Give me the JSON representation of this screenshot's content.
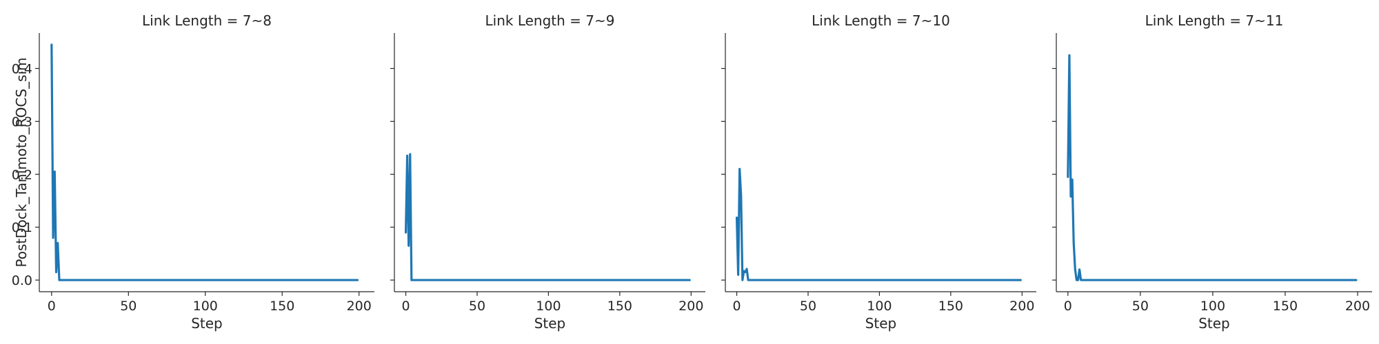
{
  "figure": {
    "ylabel": "PostDock_Tanimoto_ROCS_sim",
    "line_color": "#1f77b4"
  },
  "chart_data": [
    {
      "type": "line",
      "title": "Link Length = 7~8",
      "xlabel": "Step",
      "ylabel": "PostDock_Tanimoto_ROCS_sim",
      "xlim": [
        -8,
        210
      ],
      "ylim": [
        -0.022,
        0.467
      ],
      "xticks": [
        0,
        50,
        100,
        150,
        200
      ],
      "yticks": [
        0.0,
        0.1,
        0.2,
        0.3,
        0.4
      ],
      "show_yticklabels": true,
      "grid": false,
      "x": [
        0,
        1,
        2,
        3,
        4,
        5,
        6,
        7,
        10,
        50,
        100,
        150,
        199
      ],
      "y": [
        0.445,
        0.08,
        0.205,
        0.015,
        0.07,
        0.0,
        0.0,
        0.0,
        0.0,
        0.0,
        0.0,
        0.0,
        0.0
      ]
    },
    {
      "type": "line",
      "title": "Link Length = 7~9",
      "xlabel": "Step",
      "ylabel": "",
      "xlim": [
        -8,
        210
      ],
      "ylim": [
        -0.022,
        0.467
      ],
      "xticks": [
        0,
        50,
        100,
        150,
        200
      ],
      "yticks": [
        0.0,
        0.1,
        0.2,
        0.3,
        0.4
      ],
      "show_yticklabels": false,
      "grid": false,
      "x": [
        0,
        1,
        2,
        3,
        4,
        5,
        10,
        50,
        100,
        150,
        199
      ],
      "y": [
        0.09,
        0.235,
        0.065,
        0.238,
        0.0,
        0.0,
        0.0,
        0.0,
        0.0,
        0.0,
        0.0
      ]
    },
    {
      "type": "line",
      "title": "Link Length = 7~10",
      "xlabel": "Step",
      "ylabel": "",
      "xlim": [
        -8,
        210
      ],
      "ylim": [
        -0.022,
        0.467
      ],
      "xticks": [
        0,
        50,
        100,
        150,
        200
      ],
      "yticks": [
        0.0,
        0.1,
        0.2,
        0.3,
        0.4
      ],
      "show_yticklabels": false,
      "grid": false,
      "x": [
        0,
        1,
        2,
        3,
        4,
        5,
        6,
        7,
        8,
        10,
        50,
        100,
        150,
        199
      ],
      "y": [
        0.118,
        0.01,
        0.21,
        0.16,
        0.0,
        0.017,
        0.015,
        0.021,
        0.0,
        0.0,
        0.0,
        0.0,
        0.0,
        0.0
      ]
    },
    {
      "type": "line",
      "title": "Link Length = 7~11",
      "xlabel": "Step",
      "ylabel": "",
      "xlim": [
        -8,
        210
      ],
      "ylim": [
        -0.022,
        0.467
      ],
      "xticks": [
        0,
        50,
        100,
        150,
        200
      ],
      "yticks": [
        0.0,
        0.1,
        0.2,
        0.3,
        0.4
      ],
      "show_yticklabels": false,
      "grid": false,
      "x": [
        0,
        1,
        2,
        3,
        4,
        5,
        6,
        7,
        8,
        9,
        10,
        50,
        100,
        150,
        199
      ],
      "y": [
        0.195,
        0.425,
        0.158,
        0.19,
        0.07,
        0.02,
        0.0,
        0.0,
        0.02,
        0.0,
        0.0,
        0.0,
        0.0,
        0.0,
        0.0
      ]
    }
  ]
}
